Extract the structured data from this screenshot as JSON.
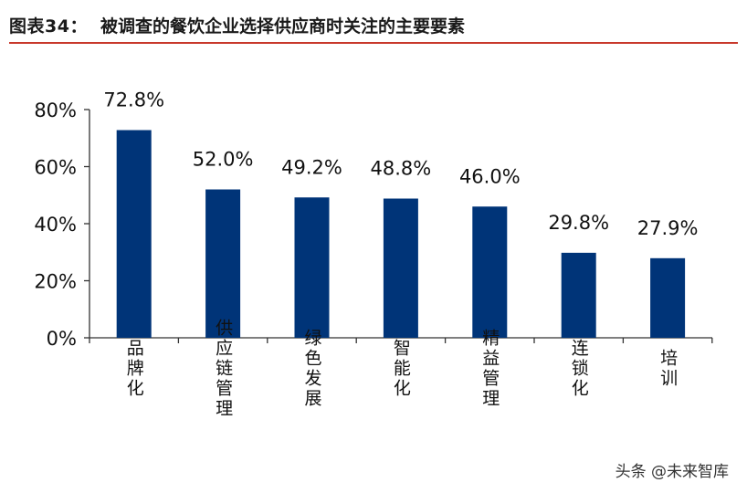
{
  "header": {
    "figure_label": "图表34：",
    "title": "被调查的餐饮企业选择供应商时关注的主要要素"
  },
  "watermark": "头条 @未来智库",
  "colors": {
    "bar": "#003478",
    "accent_line": "#c8382b",
    "axis": "#333333",
    "text": "#111111"
  },
  "chart_data": {
    "type": "bar",
    "title": "",
    "xlabel": "",
    "ylabel": "",
    "categories": [
      "品牌化",
      "供应链管理",
      "绿色发展",
      "智能化",
      "精益管理",
      "连锁化",
      "培训"
    ],
    "values": [
      72.8,
      52.0,
      49.2,
      48.8,
      46.0,
      29.8,
      27.9
    ],
    "value_labels": [
      "72.8%",
      "52.0%",
      "49.2%",
      "48.8%",
      "46.0%",
      "29.8%",
      "27.9%"
    ],
    "ylim": [
      0,
      80
    ],
    "yticks": [
      0,
      20,
      40,
      60,
      80
    ],
    "ytick_labels": [
      "0%",
      "20%",
      "40%",
      "60%",
      "80%"
    ],
    "grid": false,
    "legend": "none",
    "category_label_orientation": "vertical"
  }
}
